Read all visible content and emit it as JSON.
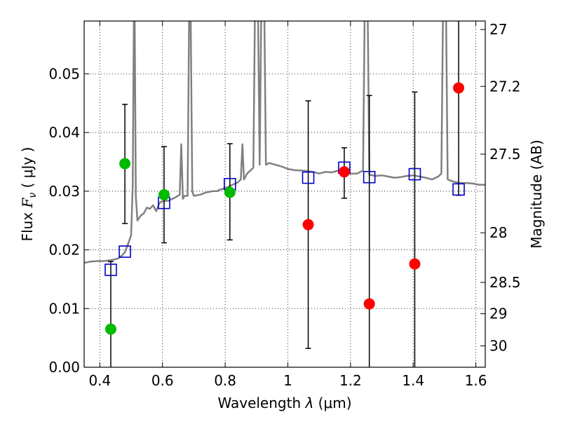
{
  "chart_data": {
    "type": "scatter",
    "title": "",
    "xlabel": "Wavelength  λ (μm)",
    "ylabel_left": "Flux  Fν  ( μJy )",
    "ylabel_left_parts": {
      "prefix": "Flux  ",
      "symbol": "F",
      "subscript": "ν",
      "suffix": "  ( μJy )"
    },
    "ylabel_right": "Magnitude (AB)",
    "xlabel_parts": {
      "prefix": "Wavelength  ",
      "symbol": "λ",
      "suffix": " (μm)"
    },
    "xlim": [
      0.35,
      1.63
    ],
    "ylim": [
      0.0,
      0.059
    ],
    "grid": true,
    "x_ticks": [
      0.4,
      0.6,
      0.8,
      1.0,
      1.2,
      1.4,
      1.6
    ],
    "x_tick_labels": [
      "0.4",
      "0.6",
      "0.8",
      "1",
      "1.2",
      "1.4",
      "1.6"
    ],
    "y_ticks": [
      0.0,
      0.01,
      0.02,
      0.03,
      0.04,
      0.05
    ],
    "y_tick_labels": [
      "0.00",
      "0.01",
      "0.02",
      "0.03",
      "0.04",
      "0.05"
    ],
    "right_ticks": [
      {
        "label": "27",
        "flux": 0.05755
      },
      {
        "label": "27.2",
        "flux": 0.04786
      },
      {
        "label": "27.5",
        "flux": 0.03631
      },
      {
        "label": "28",
        "flux": 0.02291
      },
      {
        "label": "28.5",
        "flux": 0.01445
      },
      {
        "label": "29",
        "flux": 0.00912
      },
      {
        "label": "30",
        "flux": 0.00363
      }
    ],
    "series": [
      {
        "name": "model spectrum",
        "kind": "line",
        "color": "#808080",
        "x": [
          0.35,
          0.37,
          0.39,
          0.41,
          0.43,
          0.44,
          0.45,
          0.46,
          0.47,
          0.48,
          0.49,
          0.5,
          0.505,
          0.51,
          0.515,
          0.52,
          0.53,
          0.54,
          0.55,
          0.56,
          0.57,
          0.58,
          0.59,
          0.6,
          0.62,
          0.64,
          0.655,
          0.66,
          0.665,
          0.67,
          0.68,
          0.685,
          0.69,
          0.695,
          0.7,
          0.72,
          0.74,
          0.76,
          0.77,
          0.775,
          0.78,
          0.8,
          0.82,
          0.84,
          0.85,
          0.855,
          0.86,
          0.87,
          0.88,
          0.89,
          0.895,
          0.9,
          0.905,
          0.91,
          0.915,
          0.92,
          0.925,
          0.93,
          0.94,
          0.96,
          0.98,
          1.0,
          1.02,
          1.05,
          1.08,
          1.1,
          1.12,
          1.14,
          1.16,
          1.18,
          1.2,
          1.22,
          1.24,
          1.245,
          1.25,
          1.255,
          1.26,
          1.28,
          1.3,
          1.32,
          1.34,
          1.36,
          1.38,
          1.4,
          1.42,
          1.44,
          1.46,
          1.48,
          1.49,
          1.495,
          1.5,
          1.505,
          1.51,
          1.53,
          1.55,
          1.57,
          1.59,
          1.61,
          1.63
        ],
        "values": [
          0.0178,
          0.018,
          0.0181,
          0.0181,
          0.0182,
          0.0183,
          0.0184,
          0.0186,
          0.019,
          0.0196,
          0.021,
          0.0225,
          0.031,
          0.07,
          0.029,
          0.025,
          0.0258,
          0.0262,
          0.0272,
          0.027,
          0.0276,
          0.0266,
          0.028,
          0.0283,
          0.0284,
          0.0289,
          0.0294,
          0.038,
          0.0287,
          0.0292,
          0.0292,
          0.06,
          0.06,
          0.03,
          0.0292,
          0.0294,
          0.0298,
          0.03,
          0.03,
          0.03,
          0.0302,
          0.0305,
          0.031,
          0.0315,
          0.032,
          0.038,
          0.032,
          0.033,
          0.0335,
          0.034,
          0.06,
          0.06,
          0.06,
          0.0345,
          0.06,
          0.06,
          0.06,
          0.0345,
          0.0348,
          0.0345,
          0.0342,
          0.0338,
          0.0336,
          0.0335,
          0.0333,
          0.033,
          0.0333,
          0.0332,
          0.0335,
          0.033,
          0.033,
          0.033,
          0.0335,
          0.06,
          0.06,
          0.06,
          0.0328,
          0.0326,
          0.0327,
          0.0325,
          0.0323,
          0.0324,
          0.0326,
          0.0327,
          0.0325,
          0.0323,
          0.032,
          0.0325,
          0.033,
          0.06,
          0.06,
          0.06,
          0.032,
          0.0316,
          0.0314,
          0.0314,
          0.0313,
          0.0311,
          0.0311
        ]
      },
      {
        "name": "green points",
        "kind": "points",
        "color": "#00bb00",
        "x": [
          0.435,
          0.48,
          0.605,
          0.815
        ],
        "values": [
          0.0065,
          0.0347,
          0.0294,
          0.0298
        ]
      },
      {
        "name": "red points",
        "kind": "points",
        "color": "#ff0000",
        "x": [
          1.065,
          1.18,
          1.26,
          1.405,
          1.545
        ],
        "values": [
          0.0243,
          0.0333,
          0.0108,
          0.0176,
          0.0476
        ]
      },
      {
        "name": "blue squares",
        "kind": "squares",
        "color": "#0000cc",
        "x": [
          0.435,
          0.48,
          0.605,
          0.815,
          1.065,
          1.18,
          1.26,
          1.405,
          1.545
        ],
        "values": [
          0.0166,
          0.0197,
          0.028,
          0.0312,
          0.0323,
          0.034,
          0.0324,
          0.0329,
          0.0303
        ]
      }
    ],
    "errorbars": [
      {
        "x": 0.435,
        "low": 0.0,
        "high": 0.018,
        "cap_low": false
      },
      {
        "x": 0.48,
        "low": 0.0245,
        "high": 0.0448,
        "cap_low": true
      },
      {
        "x": 0.605,
        "low": 0.0212,
        "high": 0.0376,
        "cap_low": true
      },
      {
        "x": 0.815,
        "low": 0.0217,
        "high": 0.0381,
        "cap_low": true
      },
      {
        "x": 1.065,
        "low": 0.0032,
        "high": 0.0454,
        "cap_low": true
      },
      {
        "x": 1.18,
        "low": 0.0288,
        "high": 0.0374,
        "cap_low": true
      },
      {
        "x": 1.26,
        "low": 0.0,
        "high": 0.0463,
        "cap_low": false
      },
      {
        "x": 1.405,
        "low": 0.0,
        "high": 0.0469,
        "cap_low": false
      },
      {
        "x": 1.545,
        "low": 0.0293,
        "high": 0.06,
        "cap_low": true
      }
    ]
  }
}
